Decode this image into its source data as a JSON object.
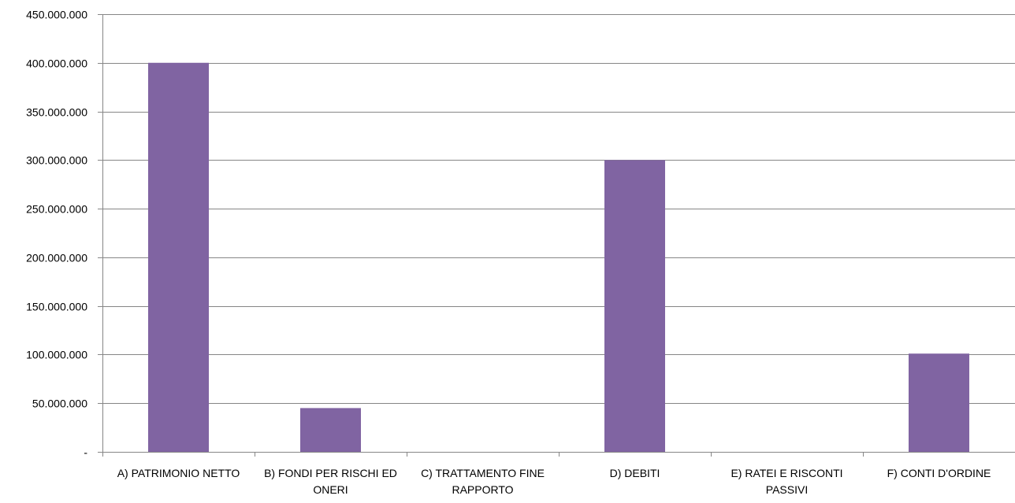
{
  "chart_data": {
    "type": "bar",
    "title": "",
    "xlabel": "",
    "ylabel": "",
    "categories": [
      [
        "A) PATRIMONIO NETTO"
      ],
      [
        "B) FONDI PER RISCHI ED",
        "ONERI"
      ],
      [
        "C) TRATTAMENTO FINE",
        "RAPPORTO"
      ],
      [
        "D) DEBITI"
      ],
      [
        "E) RATEI E RISCONTI",
        "PASSIVI"
      ],
      [
        "F) CONTI D'ORDINE"
      ]
    ],
    "values": [
      400000000,
      45000000,
      0,
      300000000,
      0,
      101000000
    ],
    "ylim": [
      0,
      450000000
    ],
    "yticks": [
      {
        "value": 0,
        "label": "-"
      },
      {
        "value": 50000000,
        "label": "50.000.000"
      },
      {
        "value": 100000000,
        "label": "100.000.000"
      },
      {
        "value": 150000000,
        "label": "150.000.000"
      },
      {
        "value": 200000000,
        "label": "200.000.000"
      },
      {
        "value": 250000000,
        "label": "250.000.000"
      },
      {
        "value": 300000000,
        "label": "300.000.000"
      },
      {
        "value": 350000000,
        "label": "350.000.000"
      },
      {
        "value": 400000000,
        "label": "400.000.000"
      },
      {
        "value": 450000000,
        "label": "450.000.000"
      }
    ],
    "grid": true,
    "legend": "none",
    "colors": {
      "bar": "#8064A2",
      "grid": "#868686",
      "axis": "#868686"
    }
  }
}
